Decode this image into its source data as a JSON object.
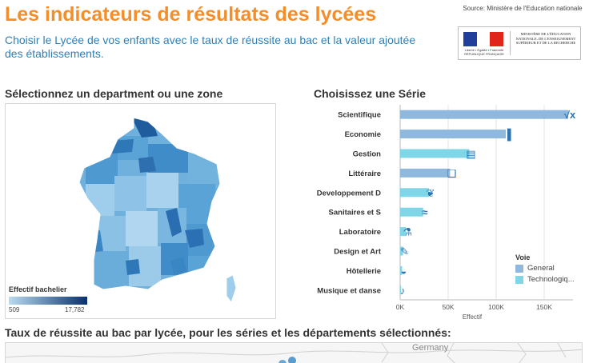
{
  "header": {
    "title": "Les indicateurs de résultats des lycées",
    "subtitle": "Choisir le Lycée de vos enfants avec le taux de réussite au bac et la valeur ajoutée des établissements.",
    "source": "Source: Ministère de l'Education nationale",
    "logo_republic": "Liberté • Égalité • Fraternité RÉPUBLIQUE FRANÇAISE",
    "logo_ministry": "Ministère de l'Éducation nationale, de l'Enseignement supérieur et de la Recherche"
  },
  "map_section": {
    "heading": "Sélectionnez un department ou une zone",
    "legend_title": "Effectif bachelier",
    "legend_min": "509",
    "legend_max": "17,782",
    "color_low": "#b9dcf1",
    "color_high": "#08306b"
  },
  "chart_section": {
    "heading": "Choisissez une Série"
  },
  "chart_data": {
    "type": "bar",
    "orientation": "horizontal",
    "categories": [
      "Scientifique",
      "Economie",
      "Gestion",
      "Littéraire",
      "Developpement D",
      "Sanitaires et S",
      "Laboratoire",
      "Design et Art",
      "Hôtellerie",
      "Musique et danse"
    ],
    "series": [
      {
        "name": "General",
        "color": "#8fb8de",
        "values": [
          175000,
          110000,
          0,
          52000,
          0,
          0,
          0,
          0,
          0,
          0
        ]
      },
      {
        "name": "Technologiq...",
        "color": "#7fd6e6",
        "values": [
          0,
          0,
          72000,
          0,
          30000,
          24000,
          6000,
          3000,
          2000,
          1000
        ]
      }
    ],
    "icons": [
      "sqrt-x-icon",
      "bar-chart-person-icon",
      "calculator-icon",
      "open-book-icon",
      "leaf-icon",
      "dna-icon",
      "microscope-icon",
      "palette-icon",
      "cloche-icon",
      "music-icon"
    ],
    "xlabel": "Effectif",
    "xticks": [
      "0K",
      "50K",
      "100K",
      "150K"
    ],
    "xlim": [
      0,
      180000
    ],
    "legend_title": "Voie",
    "legend_position": "bottom-right",
    "grid": true
  },
  "bottom_section": {
    "heading": "Taux de réussite au bac par lycée, pour les séries et les départements sélectionnés:",
    "country_label": "Germany"
  }
}
